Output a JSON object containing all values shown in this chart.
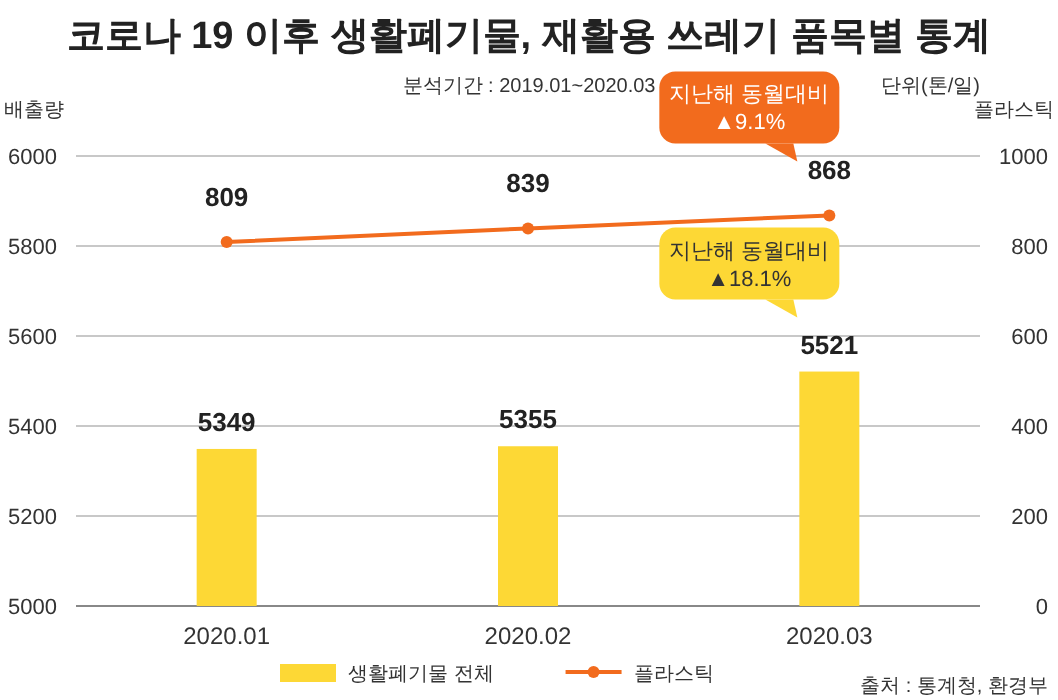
{
  "chart_data": {
    "type": "bar",
    "title": "코로나 19 이후 생활폐기물, 재활용 쓰레기 품목별 통계",
    "subtitle": "분석기간 : 2019.01~2020.03",
    "ylabel": "배출량",
    "y2label": "플라스틱",
    "categories": [
      "2020.01",
      "2020.02",
      "2020.03"
    ],
    "series": [
      {
        "name": "생활폐기물 전체",
        "color": "#fdd835",
        "values": [
          5349,
          5355,
          5521
        ]
      },
      {
        "name": "플라스틱",
        "type": "line",
        "axis": "y2",
        "color": "#f26b1d",
        "values": [
          809,
          839,
          868
        ]
      }
    ],
    "marker": "circle",
    "line_style": "solid",
    "ylim": [
      5000,
      6000
    ],
    "yticks": [
      5000,
      5200,
      5400,
      5600,
      5800,
      6000
    ],
    "y2lim": [
      0,
      1000
    ],
    "y2ticks": [
      0,
      200,
      400,
      600,
      800,
      1000
    ],
    "grid": "y",
    "legend": "bottom",
    "data_labels": true,
    "annotations": [
      "단위(톤/일)",
      "지난해 동월대비\n▲9.1%",
      "지난해 동월대비\n▲18.1%",
      "출처 : 통계청, 환경부"
    ]
  }
}
